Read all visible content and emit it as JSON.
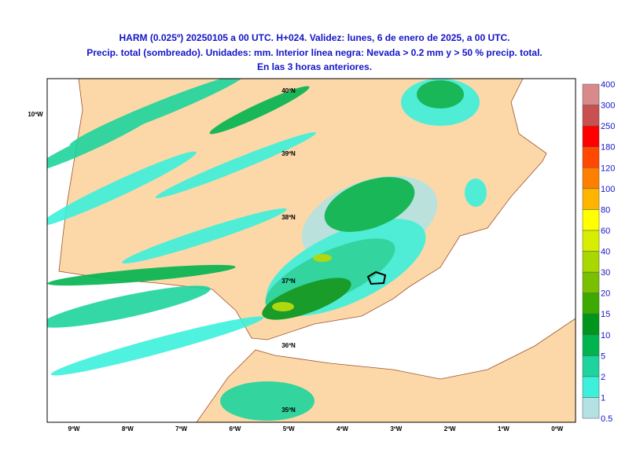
{
  "title": {
    "line1": "HARM (0.025º) 20250105 a 00 UTC. H+024. Validez: lunes, 6 de enero de 2025, a 00 UTC.",
    "line2": "Precip. total (sombreado). Unidades: mm. Interior línea negra: Nevada > 0.2 mm y > 50 % precip. total.",
    "line3": "En las 3 horas anteriores."
  },
  "map": {
    "lat_labels": [
      "40ºN",
      "39ºN",
      "38ºN",
      "37ºN",
      "36ºN",
      "35ºN"
    ],
    "lon_labels": [
      "9ºW",
      "8ºW",
      "7ºW",
      "6ºW",
      "5ºW",
      "4ºW",
      "3ºW",
      "2ºW",
      "1ºW",
      "0ºW"
    ],
    "edge_label": "10ºW"
  },
  "colorbar": {
    "labels": [
      "0.5",
      "1",
      "2",
      "5",
      "10",
      "15",
      "20",
      "30",
      "40",
      "60",
      "80",
      "100",
      "120",
      "180",
      "250",
      "300",
      "400"
    ],
    "colors": [
      "#b4e2e4",
      "#3cf0dc",
      "#1cd49c",
      "#00b450",
      "#00961e",
      "#3caa00",
      "#78c000",
      "#a8d800",
      "#d8ee00",
      "#ffff00",
      "#ffb400",
      "#ff8000",
      "#ff4800",
      "#ff0000",
      "#c85050",
      "#d88a8a",
      "#eac4c4"
    ]
  }
}
